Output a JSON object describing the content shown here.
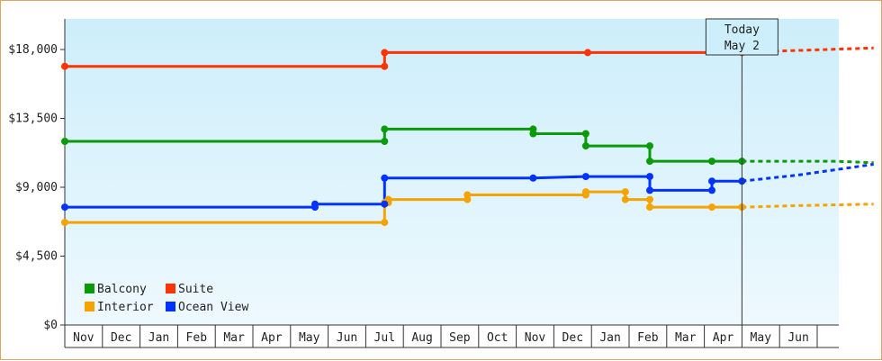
{
  "chart_data": {
    "type": "line",
    "title": "",
    "xlabel": "",
    "ylabel": "",
    "ylim": [
      0,
      20000
    ],
    "y_ticks": [
      0,
      4500,
      9000,
      13500,
      18000
    ],
    "y_tick_labels": [
      "$0",
      "$4,500",
      "$9,000",
      "$13,500",
      "$18,000"
    ],
    "x_months": [
      "Nov",
      "Dec",
      "Jan",
      "Feb",
      "Mar",
      "Apr",
      "May",
      "Jun",
      "Jul",
      "Aug",
      "Sep",
      "Oct",
      "Nov",
      "Dec",
      "Jan",
      "Feb",
      "Mar",
      "Apr",
      "May",
      "Jun"
    ],
    "today_marker": {
      "line1": "Today",
      "line2": "May 2",
      "month_pos": 18.0
    },
    "grid": false,
    "legend_position": "bottom-left",
    "step": true,
    "series": [
      {
        "name": "Balcony",
        "color": "#0a9a0a",
        "points": [
          [
            0.0,
            12000
          ],
          [
            8.5,
            12000
          ],
          [
            8.5,
            12800
          ],
          [
            12.45,
            12800
          ],
          [
            12.45,
            12500
          ],
          [
            13.85,
            12500
          ],
          [
            13.85,
            11700
          ],
          [
            15.55,
            11700
          ],
          [
            15.55,
            10700
          ],
          [
            17.2,
            10700
          ],
          [
            18.0,
            10700
          ]
        ],
        "markers": [
          0.0,
          8.5,
          12.45,
          13.85,
          15.55,
          17.2,
          18.0
        ],
        "projection": [
          [
            18.0,
            10700
          ],
          [
            20.5,
            10700
          ],
          [
            21.5,
            10600
          ]
        ]
      },
      {
        "name": "Suite",
        "color": "#ff3300",
        "points": [
          [
            0.0,
            16900
          ],
          [
            8.5,
            16900
          ],
          [
            8.5,
            17800
          ],
          [
            13.9,
            17800
          ],
          [
            18.0,
            17800
          ]
        ],
        "markers": [
          0.0,
          8.5,
          13.9,
          18.0
        ],
        "projection": [
          [
            18.0,
            17800
          ],
          [
            19.0,
            17900
          ],
          [
            21.5,
            18100
          ]
        ]
      },
      {
        "name": "Interior",
        "color": "#f5a300",
        "points": [
          [
            0.0,
            6700
          ],
          [
            8.5,
            6700
          ],
          [
            8.5,
            8000
          ],
          [
            8.6,
            8000
          ],
          [
            8.6,
            8200
          ],
          [
            10.7,
            8200
          ],
          [
            10.7,
            8500
          ],
          [
            13.85,
            8500
          ],
          [
            13.85,
            8700
          ],
          [
            14.9,
            8700
          ],
          [
            14.9,
            8200
          ],
          [
            15.55,
            8200
          ],
          [
            15.55,
            7700
          ],
          [
            17.2,
            7700
          ],
          [
            18.0,
            7700
          ]
        ],
        "markers": [
          0.0,
          8.5,
          8.6,
          10.7,
          13.85,
          14.9,
          15.55,
          17.2,
          18.0
        ],
        "projection": [
          [
            18.0,
            7700
          ],
          [
            19.5,
            7800
          ],
          [
            21.5,
            7900
          ]
        ]
      },
      {
        "name": "Ocean View",
        "color": "#0033ff",
        "points": [
          [
            0.0,
            7700
          ],
          [
            6.65,
            7700
          ],
          [
            6.65,
            7900
          ],
          [
            8.5,
            7900
          ],
          [
            8.5,
            9600
          ],
          [
            12.45,
            9600
          ],
          [
            13.85,
            9700
          ],
          [
            15.55,
            9700
          ],
          [
            15.55,
            8800
          ],
          [
            17.2,
            8800
          ],
          [
            17.2,
            9400
          ],
          [
            18.0,
            9400
          ]
        ],
        "markers": [
          0.0,
          6.65,
          8.5,
          12.45,
          13.85,
          15.55,
          17.2,
          18.0
        ],
        "projection": [
          [
            18.0,
            9400
          ],
          [
            19.5,
            9800
          ],
          [
            21.5,
            10500
          ]
        ]
      }
    ],
    "legend": [
      {
        "name": "Balcony",
        "color": "#0a9a0a"
      },
      {
        "name": "Suite",
        "color": "#ff3300"
      },
      {
        "name": "Interior",
        "color": "#f5a300"
      },
      {
        "name": "Ocean View",
        "color": "#0033ff"
      }
    ]
  }
}
